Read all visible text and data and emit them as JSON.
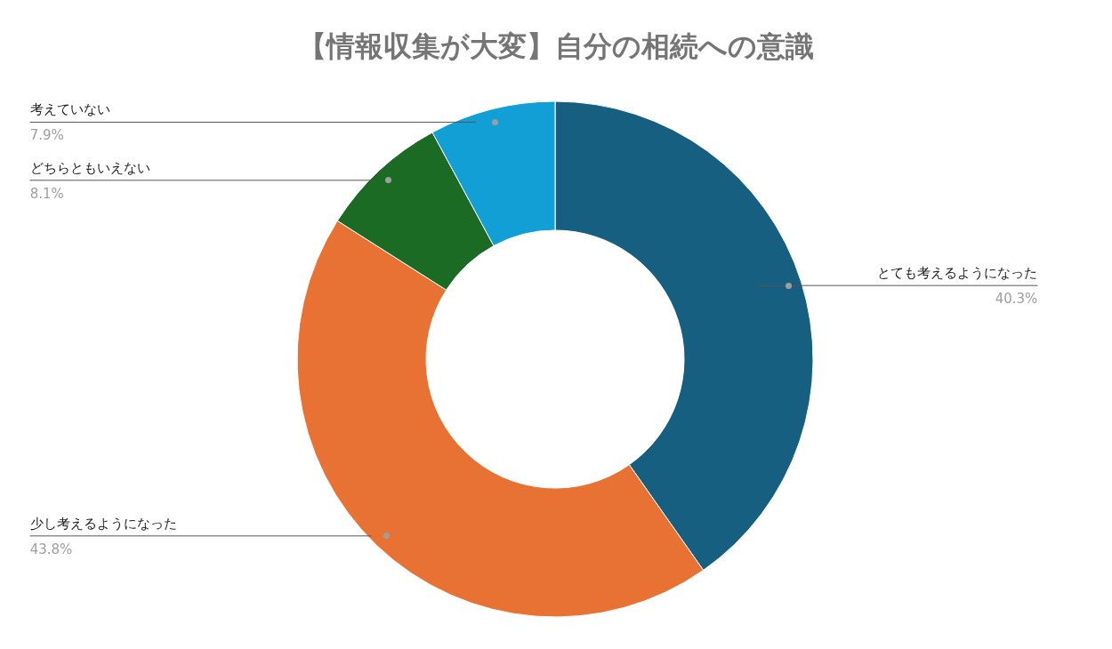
{
  "chart_data": {
    "type": "donut",
    "title": "【情報収集が大変】自分の相続への意識",
    "categories": [
      "とても考えるようになった",
      "少し考えるようになった",
      "どちらともいえない",
      "考えていない"
    ],
    "values": [
      40.3,
      43.8,
      8.1,
      7.9
    ],
    "value_labels": [
      "40.3%",
      "43.8%",
      "8.1%",
      "7.9%"
    ],
    "colors": [
      "#165f80",
      "#e87233",
      "#1c6b24",
      "#129fd6"
    ]
  }
}
